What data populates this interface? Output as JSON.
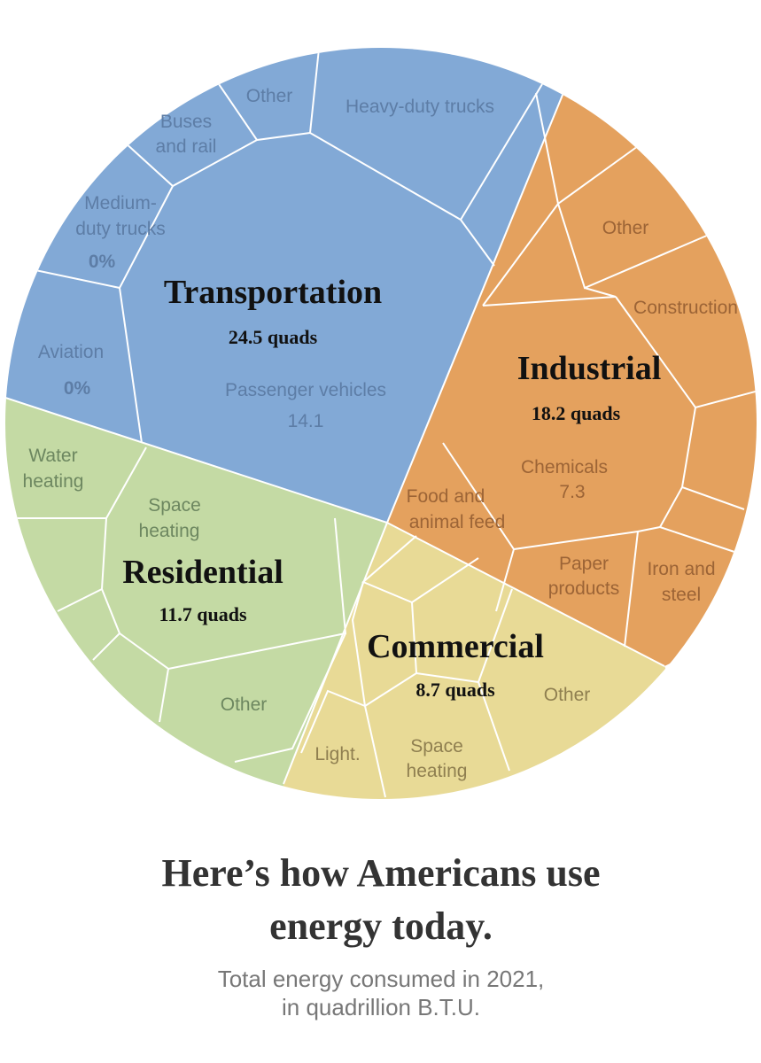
{
  "title": [
    "Here’s how Americans use",
    "energy today."
  ],
  "subtitle": [
    "Total energy consumed in 2021,",
    "in quadrillion B.T.U."
  ],
  "sectors": [
    {
      "name": "Transportation",
      "total": "24.5 quads",
      "segments": [
        {
          "label": [
            "Heavy-duty trucks"
          ]
        },
        {
          "label": [
            "Other"
          ]
        },
        {
          "label": [
            "Buses",
            "and rail"
          ]
        },
        {
          "label": [
            "Medium-",
            "duty trucks"
          ],
          "value": "0%"
        },
        {
          "label": [
            "Aviation"
          ],
          "value": "0%"
        },
        {
          "label": [
            "Passenger vehicles"
          ],
          "value": "14.1"
        }
      ]
    },
    {
      "name": "Industrial",
      "total": "18.2 quads",
      "segments": [
        {
          "label": [
            "Other"
          ]
        },
        {
          "label": [
            "Construction"
          ]
        },
        {
          "label": [
            "Chemicals"
          ],
          "value": "7.3"
        },
        {
          "label": [
            "Food and",
            "animal feed"
          ]
        },
        {
          "label": [
            "Paper",
            "products"
          ]
        },
        {
          "label": [
            "Iron and",
            "steel"
          ]
        }
      ]
    },
    {
      "name": "Residential",
      "total": "11.7 quads",
      "segments": [
        {
          "label": [
            "Water",
            "heating"
          ]
        },
        {
          "label": [
            "Space",
            "heating"
          ]
        },
        {
          "label": [
            "Other"
          ]
        }
      ]
    },
    {
      "name": "Commercial",
      "total": "8.7 quads",
      "segments": [
        {
          "label": [
            "Other"
          ]
        },
        {
          "label": [
            "Light."
          ]
        },
        {
          "label": [
            "Space",
            "heating"
          ]
        }
      ]
    }
  ]
}
